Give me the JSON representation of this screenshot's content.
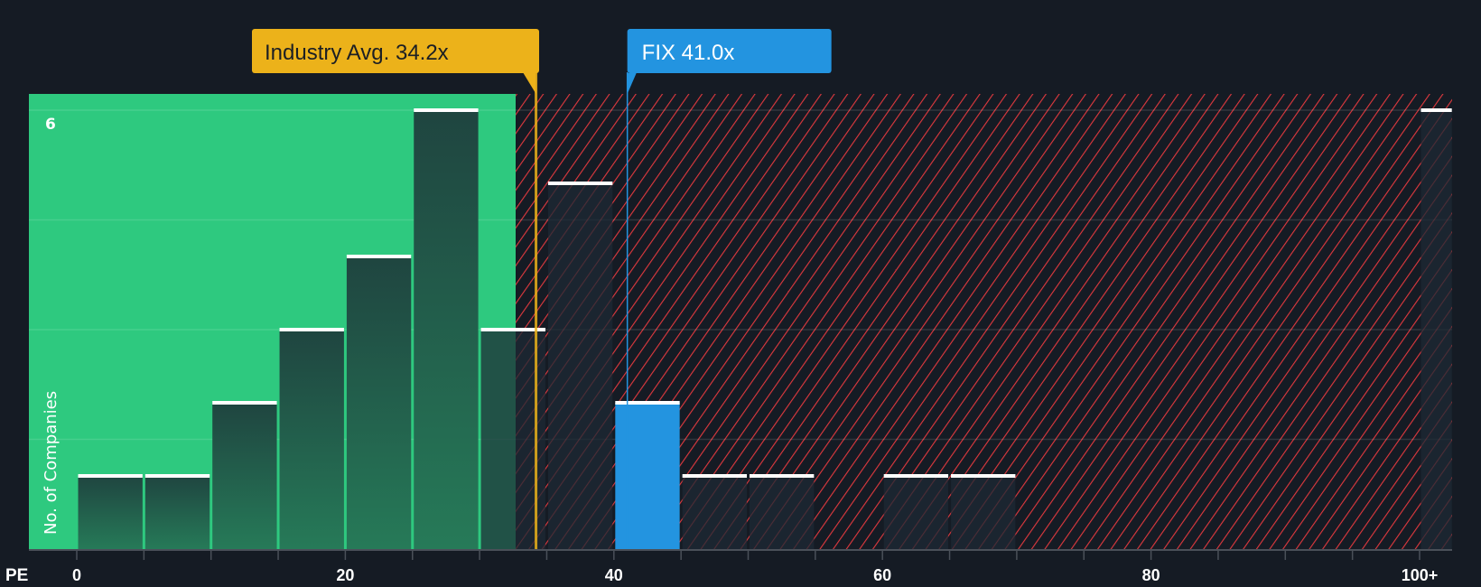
{
  "chart_data": {
    "type": "bar",
    "title": "",
    "xlabel": "PE",
    "ylabel": "No. of Companies",
    "bin_width": 5,
    "bins": [
      {
        "from": 0,
        "to": 5,
        "value": 1
      },
      {
        "from": 5,
        "to": 10,
        "value": 1
      },
      {
        "from": 10,
        "to": 15,
        "value": 2
      },
      {
        "from": 15,
        "to": 20,
        "value": 3
      },
      {
        "from": 20,
        "to": 25,
        "value": 4
      },
      {
        "from": 25,
        "to": 30,
        "value": 6
      },
      {
        "from": 30,
        "to": 35,
        "value": 3
      },
      {
        "from": 35,
        "to": 40,
        "value": 5
      },
      {
        "from": 40,
        "to": 45,
        "value": 2,
        "highlight": true
      },
      {
        "from": 45,
        "to": 50,
        "value": 1
      },
      {
        "from": 50,
        "to": 55,
        "value": 1
      },
      {
        "from": 55,
        "to": 60,
        "value": 0
      },
      {
        "from": 60,
        "to": 65,
        "value": 1
      },
      {
        "from": 65,
        "to": 70,
        "value": 1
      },
      {
        "from": 100,
        "to": 102.5,
        "value": 6,
        "label": "100+"
      }
    ],
    "x_ticks": [
      "0",
      "20",
      "40",
      "60",
      "80",
      "100+"
    ],
    "x_tick_values": [
      0,
      20,
      40,
      60,
      80,
      100
    ],
    "y_tick_labels": [
      "6"
    ],
    "ylim": [
      0,
      6
    ],
    "xlim": [
      -3.6,
      102.5
    ],
    "grid": true,
    "annotations": {
      "industry_avg": {
        "label": "Industry Avg. 34.2x",
        "value": 34.2,
        "color": "#ecb21a"
      },
      "company": {
        "label": "FIX 41.0x",
        "value": 41.0,
        "color": "#2394e0"
      }
    },
    "colors": {
      "background": "#151b24",
      "fair_region": "#2ec97f",
      "overvalued_hatch": "#e0393e",
      "bar_dark_green": "#1f4a40",
      "highlight_bar": "#2394e0",
      "bar_cap": "#ffffff"
    }
  }
}
